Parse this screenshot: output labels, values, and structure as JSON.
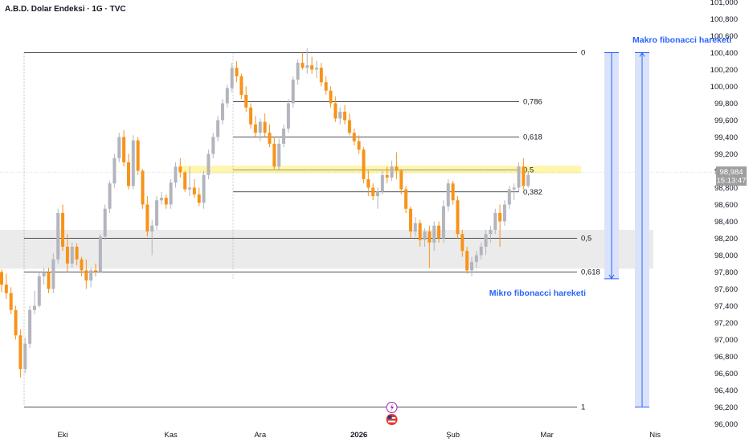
{
  "header": {
    "title": "A.B.D. Dolar Endeksi · 1G · TVC"
  },
  "colors": {
    "bull": "#b2b5be",
    "bear": "#f7931a",
    "fib_line": "#131722",
    "highlight": "#fff59d",
    "band": "#ebebeb",
    "annotation": "#2962ff",
    "range_fill": "#dbe3fb",
    "price_tag": "#9e9e9e"
  },
  "current_price": {
    "value": "98,984",
    "countdown": "15:13:47",
    "y": 98.984
  },
  "chart_data": {
    "type": "candlestick",
    "title": "A.B.D. Dolar Endeksi · 1G · TVC",
    "ylim": [
      96.0,
      101.1
    ],
    "y_ticks": [
      "101,000",
      "100,800",
      "100,600",
      "100,400",
      "100,200",
      "100,000",
      "99,800",
      "99,600",
      "99,400",
      "99,200",
      "99,000",
      "98,800",
      "98,600",
      "98,400",
      "98,200",
      "98,000",
      "97,800",
      "97,600",
      "97,400",
      "97,200",
      "97,000",
      "96,800",
      "96,600",
      "96,400",
      "96,200",
      "96,000"
    ],
    "x_ticks": [
      {
        "label": "Eki",
        "index": 13
      },
      {
        "label": "Kas",
        "index": 36
      },
      {
        "label": "Ara",
        "index": 55
      },
      {
        "label": "2026",
        "index": 76,
        "bold": true
      },
      {
        "label": "Şub",
        "index": 96
      },
      {
        "label": "Mar",
        "index": 116
      },
      {
        "label": "Nis",
        "index": 139
      }
    ],
    "candles": [
      [
        97.8,
        97.83,
        97.56,
        97.65
      ],
      [
        97.65,
        97.78,
        97.48,
        97.55
      ],
      [
        97.55,
        97.62,
        97.3,
        97.35
      ],
      [
        97.35,
        97.4,
        97.0,
        97.05
      ],
      [
        97.05,
        97.12,
        96.55,
        96.65
      ],
      [
        96.65,
        97.02,
        96.6,
        96.95
      ],
      [
        96.95,
        97.4,
        96.9,
        97.35
      ],
      [
        97.35,
        97.58,
        97.3,
        97.4
      ],
      [
        97.4,
        97.8,
        97.38,
        97.75
      ],
      [
        97.75,
        97.85,
        97.65,
        97.8
      ],
      [
        97.8,
        97.85,
        97.55,
        97.6
      ],
      [
        97.6,
        98.02,
        97.55,
        97.95
      ],
      [
        97.95,
        98.55,
        97.9,
        98.5
      ],
      [
        98.5,
        98.6,
        98.05,
        98.1
      ],
      [
        98.1,
        98.25,
        97.8,
        97.9
      ],
      [
        97.9,
        98.15,
        97.85,
        98.1
      ],
      [
        98.1,
        98.14,
        97.88,
        97.95
      ],
      [
        97.95,
        97.98,
        97.75,
        97.82
      ],
      [
        97.82,
        97.95,
        97.6,
        97.7
      ],
      [
        97.7,
        97.85,
        97.62,
        97.82
      ],
      [
        97.82,
        97.9,
        97.75,
        97.8
      ],
      [
        97.8,
        98.25,
        97.78,
        98.22
      ],
      [
        98.22,
        98.6,
        98.18,
        98.55
      ],
      [
        98.55,
        98.88,
        98.5,
        98.85
      ],
      [
        98.85,
        99.2,
        98.8,
        99.15
      ],
      [
        99.15,
        99.45,
        99.1,
        99.4
      ],
      [
        99.4,
        99.48,
        99.05,
        99.1
      ],
      [
        99.1,
        99.2,
        98.78,
        98.82
      ],
      [
        98.82,
        99.42,
        98.78,
        99.36
      ],
      [
        99.36,
        99.4,
        98.95,
        99.0
      ],
      [
        99.0,
        99.02,
        98.55,
        98.6
      ],
      [
        98.6,
        98.7,
        98.22,
        98.28
      ],
      [
        98.28,
        98.42,
        98.0,
        98.35
      ],
      [
        98.35,
        98.7,
        98.3,
        98.65
      ],
      [
        98.65,
        98.75,
        98.6,
        98.68
      ],
      [
        98.68,
        98.72,
        98.55,
        98.6
      ],
      [
        98.6,
        98.9,
        98.55,
        98.86
      ],
      [
        98.86,
        99.1,
        98.8,
        99.05
      ],
      [
        99.05,
        99.15,
        98.92,
        98.98
      ],
      [
        98.98,
        99.0,
        98.75,
        98.78
      ],
      [
        98.78,
        99.05,
        98.7,
        98.8
      ],
      [
        98.8,
        98.9,
        98.68,
        98.72
      ],
      [
        98.72,
        98.8,
        98.58,
        98.62
      ],
      [
        98.62,
        99.0,
        98.55,
        98.95
      ],
      [
        98.95,
        99.25,
        98.9,
        99.2
      ],
      [
        99.2,
        99.45,
        99.15,
        99.4
      ],
      [
        99.4,
        99.65,
        99.35,
        99.6
      ],
      [
        99.6,
        99.85,
        99.55,
        99.8
      ],
      [
        99.8,
        100.02,
        99.75,
        99.98
      ],
      [
        99.98,
        100.28,
        99.93,
        100.22
      ],
      [
        100.22,
        100.3,
        100.05,
        100.12
      ],
      [
        100.12,
        100.15,
        99.85,
        99.9
      ],
      [
        99.9,
        100.0,
        99.7,
        99.75
      ],
      [
        99.75,
        99.8,
        99.5,
        99.55
      ],
      [
        99.55,
        99.65,
        99.4,
        99.45
      ],
      [
        99.45,
        99.62,
        99.35,
        99.58
      ],
      [
        99.58,
        99.68,
        99.4,
        99.45
      ],
      [
        99.45,
        99.55,
        99.28,
        99.32
      ],
      [
        99.32,
        99.4,
        99.02,
        99.05
      ],
      [
        99.05,
        99.38,
        99.0,
        99.32
      ],
      [
        99.32,
        99.55,
        99.28,
        99.5
      ],
      [
        99.5,
        99.85,
        99.45,
        99.8
      ],
      [
        99.8,
        100.12,
        99.75,
        100.08
      ],
      [
        100.08,
        100.32,
        100.02,
        100.28
      ],
      [
        100.28,
        100.4,
        100.2,
        100.22
      ],
      [
        100.22,
        100.45,
        100.15,
        100.25
      ],
      [
        100.25,
        100.35,
        100.15,
        100.2
      ],
      [
        100.2,
        100.3,
        100.1,
        100.22
      ],
      [
        100.22,
        100.28,
        100.0,
        100.05
      ],
      [
        100.05,
        100.12,
        99.9,
        99.95
      ],
      [
        99.95,
        100.0,
        99.75,
        99.8
      ],
      [
        99.8,
        99.88,
        99.58,
        99.62
      ],
      [
        99.62,
        99.75,
        99.55,
        99.7
      ],
      [
        99.7,
        99.78,
        99.55,
        99.6
      ],
      [
        99.6,
        99.68,
        99.42,
        99.45
      ],
      [
        99.45,
        99.5,
        99.3,
        99.35
      ],
      [
        99.35,
        99.42,
        99.2,
        99.25
      ],
      [
        99.25,
        99.28,
        98.85,
        98.9
      ],
      [
        98.9,
        99.0,
        98.7,
        98.8
      ],
      [
        98.8,
        98.85,
        98.65,
        98.7
      ],
      [
        98.7,
        98.8,
        98.55,
        98.75
      ],
      [
        98.75,
        99.0,
        98.72,
        98.95
      ],
      [
        98.95,
        99.05,
        98.85,
        98.92
      ],
      [
        98.92,
        99.12,
        98.88,
        99.05
      ],
      [
        99.05,
        99.22,
        98.9,
        99.0
      ],
      [
        99.0,
        99.02,
        98.72,
        98.78
      ],
      [
        98.78,
        98.82,
        98.5,
        98.55
      ],
      [
        98.55,
        98.58,
        98.2,
        98.28
      ],
      [
        98.28,
        98.45,
        98.22,
        98.38
      ],
      [
        98.38,
        98.42,
        98.1,
        98.18
      ],
      [
        98.18,
        98.32,
        98.1,
        98.28
      ],
      [
        98.28,
        98.35,
        97.85,
        98.15
      ],
      [
        98.15,
        98.4,
        98.05,
        98.35
      ],
      [
        98.35,
        98.4,
        98.15,
        98.2
      ],
      [
        98.2,
        98.65,
        98.15,
        98.58
      ],
      [
        98.58,
        98.9,
        98.52,
        98.85
      ],
      [
        98.85,
        98.88,
        98.6,
        98.65
      ],
      [
        98.65,
        98.7,
        98.2,
        98.25
      ],
      [
        98.25,
        98.3,
        97.98,
        98.05
      ],
      [
        98.05,
        98.1,
        97.78,
        97.82
      ],
      [
        97.82,
        97.98,
        97.75,
        97.92
      ],
      [
        97.92,
        98.05,
        97.85,
        98.0
      ],
      [
        98.0,
        98.15,
        97.95,
        98.1
      ],
      [
        98.1,
        98.3,
        98.0,
        98.25
      ],
      [
        98.25,
        98.35,
        98.15,
        98.3
      ],
      [
        98.3,
        98.55,
        98.25,
        98.5
      ],
      [
        98.5,
        98.6,
        98.1,
        98.4
      ],
      [
        98.4,
        98.65,
        98.35,
        98.6
      ],
      [
        98.6,
        98.82,
        98.55,
        98.78
      ],
      [
        98.78,
        98.85,
        98.65,
        98.8
      ],
      [
        98.8,
        99.1,
        98.75,
        99.05
      ],
      [
        99.05,
        99.15,
        98.78,
        98.82
      ],
      [
        98.82,
        99.0,
        98.8,
        98.95
      ]
    ],
    "fib_macro": {
      "levels": [
        {
          "label": "0",
          "price": 100.4
        },
        {
          "label": "0,5",
          "price": 98.2
        },
        {
          "label": "0,618",
          "price": 97.8
        },
        {
          "label": "1",
          "price": 96.2
        }
      ]
    },
    "fib_micro": {
      "levels": [
        {
          "label": "0,786",
          "price": 99.82
        },
        {
          "label": "0,618",
          "price": 99.4
        },
        {
          "label": "0,5",
          "price": 99.01
        },
        {
          "label": "0,382",
          "price": 98.75
        }
      ]
    },
    "highlight_zone": {
      "label": "0,5",
      "low": 98.97,
      "high": 99.06
    },
    "support_band": {
      "low": 97.84,
      "high": 98.3
    },
    "annotations": [
      {
        "text": "Mikro fibonacci hareketi",
        "price_top": 100.4,
        "price_bottom": 97.72
      },
      {
        "text": "Makro fibonacci hareketi",
        "price_top": 100.4,
        "price_bottom": 96.2
      }
    ]
  }
}
